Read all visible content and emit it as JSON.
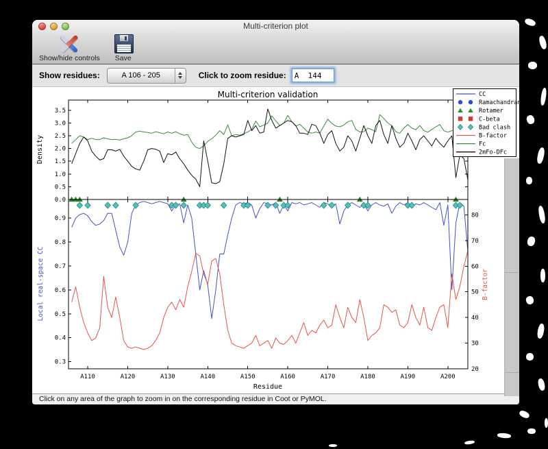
{
  "window": {
    "title": "Multi-criterion plot"
  },
  "toolbar": {
    "show_hide_label": "Show/hide controls",
    "save_label": "Save"
  },
  "controls": {
    "show_residues_label": "Show residues:",
    "residue_range_value": "A 106 - 205",
    "zoom_label": "Click to zoom residue:",
    "zoom_value": "A  144"
  },
  "status_bar": {
    "message": "Click on any area of the graph to zoom in on the corresponding residue in Coot or PyMOL."
  },
  "legend": {
    "entries": [
      {
        "label": "CC",
        "swatch": "line",
        "color": "#4152cc"
      },
      {
        "label": "Ramachandran",
        "swatch": "circles",
        "color": "#2b4fd4"
      },
      {
        "label": "Rotamer",
        "swatch": "triangles",
        "color": "#2d8a2d"
      },
      {
        "label": "C-beta",
        "swatch": "squares",
        "color": "#cc3d30"
      },
      {
        "label": "Bad clash",
        "swatch": "diamonds",
        "color": "#4fc3bb"
      },
      {
        "label": "B-factor",
        "swatch": "line",
        "color": "#e4554a"
      },
      {
        "label": "Fc",
        "swatch": "line",
        "color": "#3c8c3c"
      },
      {
        "label": "2mFo-DFc",
        "swatch": "line",
        "color": "#111111"
      }
    ]
  },
  "chart_data": [
    {
      "type": "line",
      "title": "Multi-criterion validation",
      "ylabel": "Density",
      "ylim": [
        0,
        3.9
      ],
      "yticks": [
        0.0,
        0.5,
        1.0,
        1.5,
        2.0,
        2.5,
        3.0,
        3.5
      ],
      "x_start": 106,
      "series": [
        {
          "name": "Fc",
          "color": "#3c8c3c",
          "values": [
            2.2,
            2.35,
            2.5,
            2.45,
            2.35,
            2.4,
            2.35,
            2.35,
            2.42,
            2.38,
            2.35,
            2.36,
            2.33,
            2.38,
            2.42,
            2.5,
            2.65,
            2.68,
            2.65,
            2.63,
            2.6,
            2.66,
            2.62,
            2.58,
            2.65,
            2.6,
            2.66,
            2.58,
            2.52,
            2.55,
            2.25,
            2.05,
            2.0,
            2.1,
            2.28,
            2.38,
            2.52,
            2.7,
            2.55,
            2.93,
            2.5,
            2.55,
            2.52,
            2.58,
            2.65,
            2.75,
            3.08,
            2.85,
            2.92,
            3.0,
            3.28,
            3.08,
            2.9,
            3.0,
            3.3,
            3.05,
            2.88,
            2.95,
            2.8,
            2.65,
            2.6,
            2.65,
            2.6,
            2.88,
            3.15,
            2.98,
            2.88,
            2.85,
            2.92,
            3.05,
            3.1,
            2.75,
            2.65,
            2.66,
            2.8,
            2.74,
            2.66,
            3.33,
            3.18,
            3.0,
            2.9,
            2.66,
            2.6,
            2.8,
            2.94,
            2.8,
            2.74,
            2.9,
            2.7,
            2.64,
            2.75,
            2.85,
            2.94,
            2.7,
            2.64,
            2.7,
            2.74,
            2.55,
            2.7,
            2.3
          ]
        },
        {
          "name": "2mFo-DFc",
          "color": "#111111",
          "values": [
            1.4,
            1.8,
            2.2,
            2.45,
            2.3,
            1.9,
            1.7,
            1.55,
            1.6,
            1.95,
            1.95,
            1.9,
            1.97,
            1.7,
            1.5,
            1.3,
            1.2,
            1.15,
            1.5,
            1.95,
            2.0,
            1.97,
            1.9,
            1.45,
            1.8,
            1.75,
            1.86,
            1.6,
            1.4,
            1.15,
            0.95,
            0.8,
            0.5,
            2.3,
            1.5,
            0.65,
            0.62,
            0.7,
            1.4,
            2.4,
            2.5,
            2.45,
            2.5,
            2.55,
            3.1,
            2.7,
            2.9,
            2.6,
            2.65,
            3.55,
            3.1,
            2.8,
            2.9,
            3.0,
            3.1,
            3.05,
            2.9,
            2.6,
            2.6,
            2.55,
            2.95,
            2.9,
            2.6,
            2.2,
            2.55,
            2.7,
            2.2,
            1.9,
            2.05,
            2.5,
            2.3,
            1.9,
            2.4,
            2.9,
            2.5,
            2.2,
            2.9,
            3.1,
            2.55,
            2.2,
            2.9,
            2.4,
            2.05,
            2.2,
            2.6,
            2.3,
            1.95,
            2.35,
            2.5,
            2.3,
            2.1,
            2.4,
            2.2,
            2.05,
            2.3,
            2.5,
            0.86,
            1.75,
            1.6,
            0.78
          ]
        }
      ]
    },
    {
      "type": "line",
      "xlabel": "Residue",
      "xlim": [
        105.2,
        205.0
      ],
      "xtick_labels": [
        "A110",
        "A120",
        "A130",
        "A140",
        "A150",
        "A160",
        "A170",
        "A180",
        "A190",
        "A200"
      ],
      "xtick_values": [
        110,
        120,
        130,
        140,
        150,
        160,
        170,
        180,
        190,
        200
      ],
      "ylabel_left": "Local real-space CC",
      "ylim_left": [
        0.27,
        0.978
      ],
      "yticks_left": [
        0.3,
        0.4,
        0.5,
        0.6,
        0.7,
        0.8,
        0.9
      ],
      "ylabel_right": "B-factor",
      "ylim_right": [
        20,
        86
      ],
      "yticks_right": [
        20,
        30,
        40,
        50,
        60,
        70,
        80
      ],
      "x_start": 106,
      "series": [
        {
          "name": "CC",
          "axis": "left",
          "color": "#4152cc",
          "values": [
            0.862,
            0.9,
            0.915,
            0.92,
            0.91,
            0.885,
            0.87,
            0.875,
            0.89,
            0.92,
            0.92,
            0.85,
            0.78,
            0.745,
            0.8,
            0.92,
            0.955,
            0.965,
            0.97,
            0.965,
            0.96,
            0.965,
            0.97,
            0.965,
            0.96,
            0.93,
            0.955,
            0.96,
            0.88,
            0.955,
            0.9,
            0.75,
            0.6,
            0.68,
            0.62,
            0.48,
            0.6,
            0.75,
            0.75,
            0.83,
            0.9,
            0.955,
            0.965,
            0.96,
            0.965,
            0.955,
            0.9,
            0.94,
            0.965,
            0.96,
            0.955,
            0.965,
            0.92,
            0.955,
            0.93,
            0.965,
            0.96,
            0.965,
            0.955,
            0.96,
            0.965,
            0.955,
            0.945,
            0.965,
            0.96,
            0.95,
            0.96,
            0.875,
            0.93,
            0.955,
            0.965,
            0.955,
            0.945,
            0.96,
            0.93,
            0.955,
            0.965,
            0.955,
            0.95,
            0.96,
            0.92,
            0.95,
            0.965,
            0.955,
            0.965,
            0.95,
            0.96,
            0.955,
            0.965,
            0.955,
            0.945,
            0.935,
            0.965,
            0.87,
            0.955,
            0.6,
            0.88,
            0.965,
            0.95,
            0.76
          ]
        },
        {
          "name": "B-factor",
          "axis": "right",
          "color": "#e4554a",
          "values": [
            46,
            52,
            44,
            38,
            34,
            31,
            32,
            36,
            56,
            44,
            40,
            48,
            40,
            31,
            28.5,
            28,
            28.5,
            28,
            27.5,
            28,
            29,
            31,
            34,
            40,
            44,
            46,
            43,
            47,
            44,
            52,
            58,
            65,
            64,
            57,
            53,
            62,
            63,
            57,
            45,
            35,
            30,
            29,
            28.5,
            28,
            29,
            30,
            33,
            29,
            30,
            31,
            28,
            32,
            30,
            29.5,
            31,
            33,
            30,
            34,
            38,
            33,
            35,
            34,
            37,
            39,
            36,
            37,
            45,
            40,
            36,
            44,
            40,
            38,
            47,
            40,
            31,
            33,
            34,
            36,
            45,
            44,
            42,
            43,
            37,
            36,
            38,
            45,
            40,
            37,
            44,
            36,
            35,
            40,
            44,
            45,
            36,
            57,
            47,
            52,
            60,
            66
          ]
        }
      ],
      "markers": [
        {
          "name": "Rotamer",
          "shape": "triangle",
          "color": "#2d8a2d",
          "residues": [
            106,
            107,
            108,
            134,
            158,
            178,
            202
          ]
        },
        {
          "name": "Bad clash",
          "shape": "diamond",
          "color": "#4fc3bb",
          "residues": [
            108,
            110,
            115,
            117,
            122,
            131,
            132,
            134,
            138,
            139,
            140,
            144,
            149,
            150,
            155,
            157,
            159,
            160,
            169,
            171,
            175,
            179,
            180,
            190,
            191,
            202,
            203
          ]
        }
      ]
    }
  ]
}
